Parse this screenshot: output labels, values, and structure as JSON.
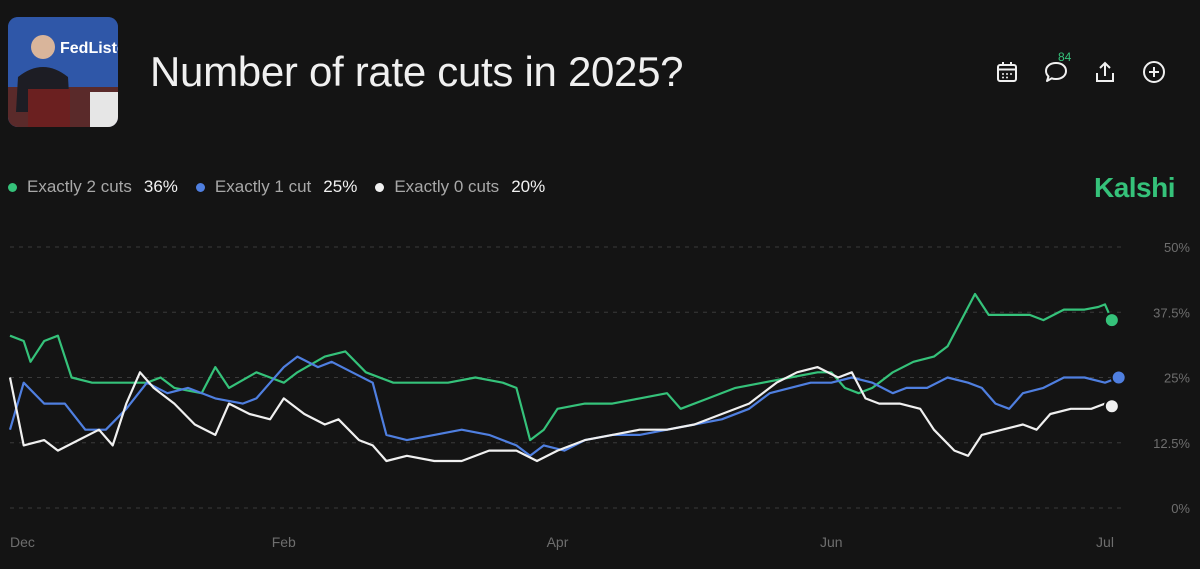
{
  "header": {
    "title": "Number of rate cuts in 2025?",
    "thumbnail_text": "FedListens",
    "comment_count": "84"
  },
  "toolbar": {
    "icons": [
      "calendar-icon",
      "comment-icon",
      "share-icon",
      "add-icon"
    ]
  },
  "brand": "Kalshi",
  "colors": {
    "green": "#35c27a",
    "blue": "#4f7fe0",
    "white": "#f0f0f0",
    "background": "#141414"
  },
  "legend": [
    {
      "name": "Exactly 2 cuts",
      "value": "36%",
      "color": "#35c27a"
    },
    {
      "name": "Exactly 1 cut",
      "value": "25%",
      "color": "#4f7fe0"
    },
    {
      "name": "Exactly 0 cuts",
      "value": "20%",
      "color": "#f0f0f0"
    }
  ],
  "chart_data": {
    "type": "line",
    "x_ticks": [
      "Dec",
      "Feb",
      "Apr",
      "Jun",
      "Jul"
    ],
    "x_tick_positions": [
      0,
      2,
      4,
      6,
      8
    ],
    "xlim": [
      0,
      8
    ],
    "y_ticks": [
      "0%",
      "12.5%",
      "25%",
      "37.5%",
      "50%"
    ],
    "y_tick_values": [
      0,
      12.5,
      25,
      37.5,
      50
    ],
    "ylim": [
      0,
      50
    ],
    "grid": true,
    "legend_position": "top-left",
    "series": [
      {
        "name": "Exactly 2 cuts",
        "color": "#35c27a",
        "points": [
          [
            0,
            33
          ],
          [
            0.1,
            32
          ],
          [
            0.15,
            28
          ],
          [
            0.25,
            32
          ],
          [
            0.35,
            33
          ],
          [
            0.45,
            25
          ],
          [
            0.6,
            24
          ],
          [
            0.8,
            24
          ],
          [
            1.0,
            24
          ],
          [
            1.1,
            25
          ],
          [
            1.2,
            23
          ],
          [
            1.4,
            22
          ],
          [
            1.5,
            27
          ],
          [
            1.6,
            23
          ],
          [
            1.8,
            26
          ],
          [
            1.9,
            25
          ],
          [
            2.0,
            24
          ],
          [
            2.1,
            26
          ],
          [
            2.3,
            29
          ],
          [
            2.45,
            30
          ],
          [
            2.6,
            26
          ],
          [
            2.8,
            24
          ],
          [
            3.0,
            24
          ],
          [
            3.2,
            24
          ],
          [
            3.4,
            25
          ],
          [
            3.6,
            24
          ],
          [
            3.7,
            23
          ],
          [
            3.75,
            18
          ],
          [
            3.8,
            13
          ],
          [
            3.9,
            15
          ],
          [
            4.0,
            19
          ],
          [
            4.2,
            20
          ],
          [
            4.4,
            20
          ],
          [
            4.6,
            21
          ],
          [
            4.8,
            22
          ],
          [
            4.9,
            19
          ],
          [
            5.1,
            21
          ],
          [
            5.3,
            23
          ],
          [
            5.5,
            24
          ],
          [
            5.7,
            25
          ],
          [
            5.9,
            26
          ],
          [
            6.0,
            26
          ],
          [
            6.1,
            23
          ],
          [
            6.2,
            22
          ],
          [
            6.3,
            23
          ],
          [
            6.45,
            26
          ],
          [
            6.6,
            28
          ],
          [
            6.75,
            29
          ],
          [
            6.85,
            31
          ],
          [
            6.95,
            36
          ],
          [
            7.05,
            41
          ],
          [
            7.15,
            37
          ],
          [
            7.3,
            37
          ],
          [
            7.45,
            37
          ],
          [
            7.55,
            36
          ],
          [
            7.7,
            38
          ],
          [
            7.85,
            38
          ],
          [
            7.95,
            38.5
          ],
          [
            8.0,
            39
          ],
          [
            8.05,
            36
          ]
        ]
      },
      {
        "name": "Exactly 1 cut",
        "color": "#4f7fe0",
        "points": [
          [
            0,
            15
          ],
          [
            0.1,
            24
          ],
          [
            0.25,
            20
          ],
          [
            0.4,
            20
          ],
          [
            0.55,
            15
          ],
          [
            0.7,
            15
          ],
          [
            0.85,
            19
          ],
          [
            1.0,
            24
          ],
          [
            1.15,
            22
          ],
          [
            1.3,
            23
          ],
          [
            1.5,
            21
          ],
          [
            1.7,
            20
          ],
          [
            1.8,
            21
          ],
          [
            1.9,
            24
          ],
          [
            2.0,
            27
          ],
          [
            2.1,
            29
          ],
          [
            2.25,
            27
          ],
          [
            2.35,
            28
          ],
          [
            2.5,
            26
          ],
          [
            2.65,
            24
          ],
          [
            2.75,
            14
          ],
          [
            2.9,
            13
          ],
          [
            3.1,
            14
          ],
          [
            3.3,
            15
          ],
          [
            3.5,
            14
          ],
          [
            3.7,
            12
          ],
          [
            3.8,
            10
          ],
          [
            3.9,
            12
          ],
          [
            4.05,
            11
          ],
          [
            4.2,
            13
          ],
          [
            4.4,
            14
          ],
          [
            4.6,
            14
          ],
          [
            4.8,
            15
          ],
          [
            5.0,
            16
          ],
          [
            5.2,
            17
          ],
          [
            5.4,
            19
          ],
          [
            5.55,
            22
          ],
          [
            5.7,
            23
          ],
          [
            5.85,
            24
          ],
          [
            6.0,
            24
          ],
          [
            6.15,
            25
          ],
          [
            6.3,
            24
          ],
          [
            6.45,
            22
          ],
          [
            6.55,
            23
          ],
          [
            6.7,
            23
          ],
          [
            6.85,
            25
          ],
          [
            7.0,
            24
          ],
          [
            7.1,
            23
          ],
          [
            7.2,
            20
          ],
          [
            7.3,
            19
          ],
          [
            7.4,
            22
          ],
          [
            7.55,
            23
          ],
          [
            7.7,
            25
          ],
          [
            7.85,
            25
          ],
          [
            8.0,
            24
          ],
          [
            8.1,
            25
          ]
        ]
      },
      {
        "name": "Exactly 0 cuts",
        "color": "#f0f0f0",
        "points": [
          [
            0,
            25
          ],
          [
            0.1,
            12
          ],
          [
            0.25,
            13
          ],
          [
            0.35,
            11
          ],
          [
            0.5,
            13
          ],
          [
            0.65,
            15
          ],
          [
            0.75,
            12
          ],
          [
            0.85,
            20
          ],
          [
            0.95,
            26
          ],
          [
            1.05,
            23
          ],
          [
            1.2,
            20
          ],
          [
            1.35,
            16
          ],
          [
            1.5,
            14
          ],
          [
            1.6,
            20
          ],
          [
            1.75,
            18
          ],
          [
            1.9,
            17
          ],
          [
            2.0,
            21
          ],
          [
            2.15,
            18
          ],
          [
            2.3,
            16
          ],
          [
            2.4,
            17
          ],
          [
            2.55,
            13
          ],
          [
            2.65,
            12
          ],
          [
            2.75,
            9
          ],
          [
            2.9,
            10
          ],
          [
            3.1,
            9
          ],
          [
            3.3,
            9
          ],
          [
            3.5,
            11
          ],
          [
            3.7,
            11
          ],
          [
            3.85,
            9
          ],
          [
            4.0,
            11
          ],
          [
            4.2,
            13
          ],
          [
            4.4,
            14
          ],
          [
            4.6,
            15
          ],
          [
            4.8,
            15
          ],
          [
            5.0,
            16
          ],
          [
            5.2,
            18
          ],
          [
            5.4,
            20
          ],
          [
            5.6,
            24
          ],
          [
            5.75,
            26
          ],
          [
            5.9,
            27
          ],
          [
            6.05,
            25
          ],
          [
            6.15,
            26
          ],
          [
            6.25,
            21
          ],
          [
            6.35,
            20
          ],
          [
            6.5,
            20
          ],
          [
            6.65,
            19
          ],
          [
            6.75,
            15
          ],
          [
            6.9,
            11
          ],
          [
            7.0,
            10
          ],
          [
            7.1,
            14
          ],
          [
            7.25,
            15
          ],
          [
            7.4,
            16
          ],
          [
            7.5,
            15
          ],
          [
            7.6,
            18
          ],
          [
            7.75,
            19
          ],
          [
            7.9,
            19
          ],
          [
            8.0,
            20
          ],
          [
            8.05,
            19.5
          ]
        ]
      }
    ]
  }
}
